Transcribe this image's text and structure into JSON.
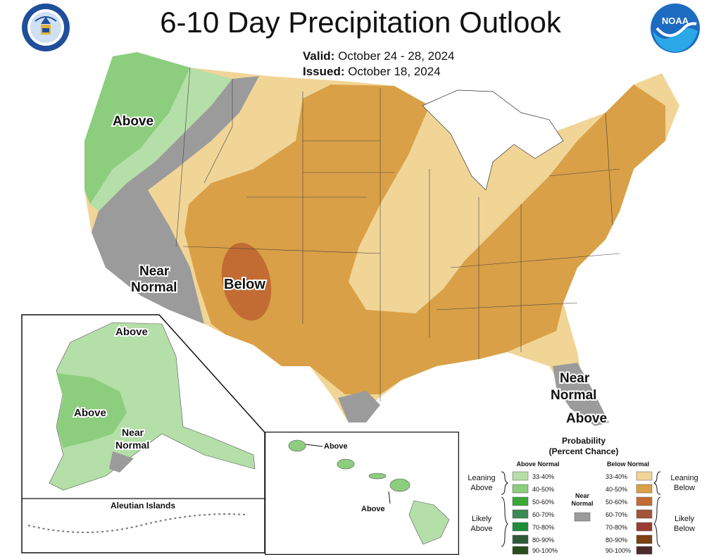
{
  "header": {
    "title": "6-10 Day Precipitation Outlook",
    "valid_label": "Valid:",
    "valid_dates": "October 24 - 28, 2024",
    "issued_label": "Issued:",
    "issued_date": "October 18, 2024",
    "seal_text": "DEPARTMENT OF COMMERCE · UNITED STATES OF AMERICA",
    "noaa_logo_text": "NOAA"
  },
  "map_labels": {
    "conus_above": "Above",
    "conus_near_normal_1": "Near",
    "conus_near_normal_2": "Normal",
    "conus_below": "Below",
    "florida_near_1": "Near",
    "florida_near_2": "Normal",
    "florida_above": "Above",
    "alaska_above_north": "Above",
    "alaska_above_west": "Above",
    "alaska_near_1": "Near",
    "alaska_near_2": "Normal",
    "aleutian_title": "Aleutian Islands",
    "hawaii_above_1": "Above",
    "hawaii_above_2": "Above"
  },
  "legend": {
    "title_1": "Probability",
    "title_2": "(Percent Chance)",
    "above_header": "Above Normal",
    "below_header": "Below Normal",
    "near_label_1": "Near",
    "near_label_2": "Normal",
    "leaning_above_1": "Leaning",
    "leaning_above_2": "Above",
    "likely_above_1": "Likely",
    "likely_above_2": "Above",
    "leaning_below_1": "Leaning",
    "leaning_below_2": "Below",
    "likely_below_1": "Likely",
    "likely_below_2": "Below",
    "above_bins": [
      {
        "range": "33-40%",
        "color": "#b4dfa8"
      },
      {
        "range": "40-50%",
        "color": "#8ccd7e"
      },
      {
        "range": "50-60%",
        "color": "#3aa935"
      },
      {
        "range": "60-70%",
        "color": "#3b8a53"
      },
      {
        "range": "70-80%",
        "color": "#1e8c3a"
      },
      {
        "range": "80-90%",
        "color": "#2f5a3a"
      },
      {
        "range": "90-100%",
        "color": "#274d1c"
      }
    ],
    "below_bins": [
      {
        "range": "33-40%",
        "color": "#f1d597"
      },
      {
        "range": "40-50%",
        "color": "#d9a047"
      },
      {
        "range": "50-60%",
        "color": "#c26c33"
      },
      {
        "range": "60-70%",
        "color": "#a4543a"
      },
      {
        "range": "70-80%",
        "color": "#9a3c33"
      },
      {
        "range": "80-90%",
        "color": "#7d4112"
      },
      {
        "range": "90-100%",
        "color": "#4e2a2a"
      }
    ],
    "near_color": "#9b9b9b"
  },
  "icons": [
    "doc-seal-icon",
    "noaa-logo-icon"
  ]
}
